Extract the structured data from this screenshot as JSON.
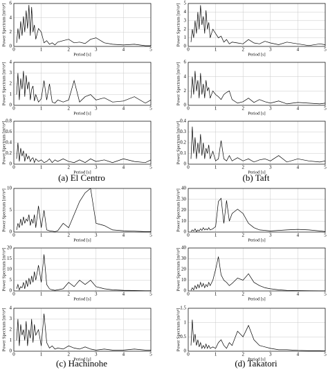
{
  "chart_data": [
    {
      "type": "line",
      "xlabel": "Period [s]",
      "ylabel": "Power Spectrum [m²/s⁴]",
      "xlim": [
        0,
        5
      ],
      "xticks": [
        0,
        1,
        2,
        3,
        4,
        5
      ],
      "ylim": [
        0,
        6
      ],
      "yticks": [
        0,
        2,
        4,
        6
      ],
      "grid": true,
      "x": [
        0.1,
        0.15,
        0.2,
        0.25,
        0.3,
        0.35,
        0.4,
        0.45,
        0.5,
        0.55,
        0.6,
        0.65,
        0.7,
        0.75,
        0.8,
        0.9,
        1.0,
        1.1,
        1.2,
        1.3,
        1.4,
        1.5,
        1.6,
        1.8,
        2.0,
        2.2,
        2.4,
        2.6,
        2.8,
        3.0,
        3.3,
        3.6,
        4.0,
        4.4,
        4.8,
        5.0
      ],
      "series": [
        {
          "color": "#000000",
          "values": [
            0.5,
            2.5,
            1,
            3.5,
            1.5,
            4.2,
            2,
            5,
            2.5,
            5.8,
            1.5,
            5.5,
            2,
            3,
            1,
            2.5,
            2,
            0.5,
            0.8,
            0.3,
            0.5,
            0.2,
            0.6,
            0.8,
            1.0,
            0.5,
            0.6,
            0.4,
            1.0,
            1.2,
            0.5,
            0.3,
            0.2,
            0.3,
            0.1,
            0.1
          ]
        }
      ]
    },
    {
      "type": "line",
      "xlabel": "Period [s]",
      "ylabel": "Power Spectrum [m²/s⁴]",
      "xlim": [
        0,
        5
      ],
      "xticks": [
        0,
        1,
        2,
        3,
        4,
        5
      ],
      "ylim": [
        0,
        4
      ],
      "yticks": [
        0,
        1,
        2,
        3,
        4
      ],
      "grid": true,
      "x": [
        0.1,
        0.15,
        0.2,
        0.25,
        0.3,
        0.35,
        0.4,
        0.45,
        0.5,
        0.55,
        0.6,
        0.65,
        0.7,
        0.75,
        0.8,
        0.9,
        1.0,
        1.1,
        1.2,
        1.3,
        1.4,
        1.5,
        1.6,
        1.8,
        2.0,
        2.2,
        2.4,
        2.6,
        2.8,
        3.0,
        3.3,
        3.6,
        4.0,
        4.4,
        4.8,
        5.0
      ],
      "series": [
        {
          "color": "#000000",
          "values": [
            1,
            3,
            0.5,
            2.5,
            1.5,
            3.2,
            0.8,
            2.8,
            1.5,
            2.2,
            0.5,
            1.5,
            1.8,
            0.4,
            1,
            0.3,
            0.6,
            2.3,
            0.5,
            2.0,
            0.3,
            0.2,
            0.5,
            0.3,
            0.5,
            2.3,
            0.3,
            0.8,
            1.0,
            0.5,
            0.7,
            0.3,
            0.4,
            0.8,
            0.2,
            0.5
          ]
        }
      ]
    },
    {
      "type": "line",
      "xlabel": "Period [s]",
      "ylabel": "Power Spectrum [m²/s⁴]",
      "xlim": [
        0,
        5
      ],
      "xticks": [
        0,
        1,
        2,
        3,
        4,
        5
      ],
      "ylim": [
        0,
        0.8
      ],
      "yticks": [
        0,
        0.2,
        0.4,
        0.6,
        0.8
      ],
      "grid": true,
      "x": [
        0.1,
        0.15,
        0.2,
        0.25,
        0.3,
        0.35,
        0.4,
        0.45,
        0.5,
        0.55,
        0.6,
        0.65,
        0.7,
        0.75,
        0.8,
        0.9,
        1.0,
        1.1,
        1.2,
        1.3,
        1.4,
        1.5,
        1.6,
        1.8,
        2.0,
        2.2,
        2.4,
        2.6,
        2.8,
        3.0,
        3.3,
        3.6,
        4.0,
        4.4,
        4.8,
        5.0
      ],
      "series": [
        {
          "color": "#000000",
          "values": [
            0.1,
            0.4,
            0.05,
            0.3,
            0.15,
            0.25,
            0.05,
            0.2,
            0.1,
            0.15,
            0.05,
            0.1,
            0.12,
            0.03,
            0.1,
            0.05,
            0.08,
            0.03,
            0.05,
            0.1,
            0.03,
            0.08,
            0.05,
            0.1,
            0.05,
            0.03,
            0.08,
            0.03,
            0.1,
            0.05,
            0.08,
            0.03,
            0.1,
            0.05,
            0.03,
            0.08
          ]
        }
      ]
    },
    {
      "type": "line",
      "xlabel": "Period [s]",
      "ylabel": "Power Spectrum [m²/s⁴]",
      "xlim": [
        0,
        5
      ],
      "xticks": [
        0,
        1,
        2,
        3,
        4,
        5
      ],
      "ylim": [
        0,
        5
      ],
      "yticks": [
        0,
        1,
        2,
        3,
        4,
        5
      ],
      "grid": true,
      "x": [
        0.1,
        0.15,
        0.2,
        0.25,
        0.3,
        0.35,
        0.4,
        0.45,
        0.5,
        0.55,
        0.6,
        0.65,
        0.7,
        0.75,
        0.8,
        0.9,
        1.0,
        1.1,
        1.2,
        1.3,
        1.4,
        1.5,
        1.6,
        1.8,
        2.0,
        2.2,
        2.4,
        2.6,
        2.8,
        3.0,
        3.3,
        3.6,
        4.0,
        4.4,
        4.8,
        5.0
      ],
      "series": [
        {
          "color": "#000000",
          "values": [
            0.5,
            2,
            1,
            3,
            1.5,
            4,
            2,
            4.8,
            2.5,
            3.5,
            1.5,
            4.2,
            2,
            2.8,
            1,
            2,
            1.5,
            1,
            1.2,
            0.5,
            0.8,
            0.3,
            0.5,
            0.4,
            0.3,
            0.8,
            0.4,
            0.3,
            0.6,
            0.4,
            0.2,
            0.5,
            0.3,
            0.1,
            0.3,
            0.2
          ]
        }
      ]
    },
    {
      "type": "line",
      "xlabel": "Period [s]",
      "ylabel": "Power Spectrum [m²/s⁴]",
      "xlim": [
        0,
        5
      ],
      "xticks": [
        0,
        1,
        2,
        3,
        4,
        5
      ],
      "ylim": [
        0,
        6
      ],
      "yticks": [
        0,
        2,
        4,
        6
      ],
      "grid": true,
      "x": [
        0.1,
        0.15,
        0.2,
        0.25,
        0.3,
        0.35,
        0.4,
        0.45,
        0.5,
        0.55,
        0.6,
        0.65,
        0.7,
        0.75,
        0.8,
        0.9,
        1.0,
        1.1,
        1.2,
        1.3,
        1.4,
        1.5,
        1.6,
        1.8,
        2.0,
        2.2,
        2.4,
        2.6,
        2.8,
        3.0,
        3.3,
        3.6,
        4.0,
        4.4,
        4.8,
        5.0
      ],
      "series": [
        {
          "color": "#000000",
          "values": [
            1,
            4,
            1.5,
            4.8,
            2,
            3.5,
            1,
            4.5,
            1.5,
            3,
            1,
            3.5,
            2,
            2.5,
            1,
            2,
            1.5,
            1.2,
            0.8,
            1.5,
            1.8,
            2.0,
            0.8,
            0.3,
            0.5,
            1.0,
            0.4,
            0.8,
            0.5,
            0.3,
            0.6,
            0.2,
            0.4,
            0.3,
            0.2,
            0.3
          ]
        }
      ]
    },
    {
      "type": "line",
      "xlabel": "Period [s]",
      "ylabel": "Power Spectrum [m²/s⁴]",
      "xlim": [
        0,
        5
      ],
      "xticks": [
        0,
        1,
        2,
        3,
        4,
        5
      ],
      "ylim": [
        0,
        0.4
      ],
      "yticks": [
        0,
        0.1,
        0.2,
        0.3,
        0.4
      ],
      "grid": true,
      "x": [
        0.1,
        0.15,
        0.2,
        0.25,
        0.3,
        0.35,
        0.4,
        0.45,
        0.5,
        0.55,
        0.6,
        0.65,
        0.7,
        0.75,
        0.8,
        0.9,
        1.0,
        1.1,
        1.2,
        1.3,
        1.4,
        1.5,
        1.6,
        1.8,
        2.0,
        2.2,
        2.4,
        2.6,
        2.8,
        3.0,
        3.3,
        3.6,
        4.0,
        4.4,
        4.8,
        5.0
      ],
      "series": [
        {
          "color": "#000000",
          "values": [
            0.05,
            0.35,
            0.1,
            0.25,
            0.05,
            0.2,
            0.1,
            0.28,
            0.08,
            0.2,
            0.05,
            0.15,
            0.1,
            0.18,
            0.05,
            0.12,
            0.03,
            0.05,
            0.22,
            0.05,
            0.03,
            0.08,
            0.03,
            0.06,
            0.03,
            0.05,
            0.02,
            0.04,
            0.05,
            0.03,
            0.08,
            0.02,
            0.05,
            0.03,
            0.02,
            0.03
          ]
        }
      ]
    },
    {
      "type": "line",
      "xlabel": "Period [s]",
      "ylabel": "Power Spectrum [m²/s⁴]",
      "xlim": [
        0,
        5
      ],
      "xticks": [
        0,
        1,
        2,
        3,
        4,
        5
      ],
      "ylim": [
        0,
        10
      ],
      "yticks": [
        0,
        5,
        10
      ],
      "grid": true,
      "x": [
        0.1,
        0.15,
        0.2,
        0.25,
        0.3,
        0.35,
        0.4,
        0.45,
        0.5,
        0.55,
        0.6,
        0.65,
        0.7,
        0.75,
        0.8,
        0.9,
        1.0,
        1.1,
        1.2,
        1.3,
        1.4,
        1.5,
        1.6,
        1.8,
        2.0,
        2.2,
        2.4,
        2.6,
        2.8,
        3.0,
        3.3,
        3.6,
        4.0,
        4.4,
        4.8,
        5.0
      ],
      "series": [
        {
          "color": "#000000",
          "values": [
            0.5,
            2,
            1,
            3,
            1.5,
            3.5,
            2,
            3,
            2.5,
            4,
            1.5,
            3,
            2,
            4,
            1,
            6,
            1,
            5,
            0.5,
            0.3,
            0.2,
            0.1,
            0.3,
            2,
            1,
            4,
            7,
            9,
            10,
            2,
            1.5,
            0.5,
            0.3,
            0.2,
            0.1,
            0.1
          ]
        }
      ]
    },
    {
      "type": "line",
      "xlabel": "Period [s]",
      "ylabel": "Power Spectrum [m²/s⁴]",
      "xlim": [
        0,
        5
      ],
      "xticks": [
        0,
        1,
        2,
        3,
        4,
        5
      ],
      "ylim": [
        0,
        20
      ],
      "yticks": [
        0,
        5,
        10,
        15,
        20
      ],
      "grid": true,
      "x": [
        0.1,
        0.15,
        0.2,
        0.25,
        0.3,
        0.35,
        0.4,
        0.45,
        0.5,
        0.55,
        0.6,
        0.65,
        0.7,
        0.75,
        0.8,
        0.9,
        1.0,
        1.1,
        1.2,
        1.3,
        1.4,
        1.5,
        1.6,
        1.8,
        2.0,
        2.2,
        2.4,
        2.6,
        2.8,
        3.0,
        3.3,
        3.6,
        4.0,
        4.4,
        4.8,
        5.0
      ],
      "series": [
        {
          "color": "#000000",
          "values": [
            1,
            3,
            0.5,
            2,
            1.5,
            4,
            1,
            5,
            2,
            6,
            3,
            7,
            4,
            9,
            5,
            12,
            4,
            17,
            3,
            1,
            0.5,
            0.3,
            0.5,
            1,
            4,
            2,
            5,
            3,
            5,
            2,
            1,
            0.5,
            0.3,
            0.2,
            0.1,
            0.1
          ]
        }
      ]
    },
    {
      "type": "line",
      "xlabel": "Period [s]",
      "ylabel": "Power Spectrum [m²/s⁴]",
      "xlim": [
        0,
        5
      ],
      "xticks": [
        0,
        1,
        2,
        3,
        4,
        5
      ],
      "ylim": [
        0,
        4
      ],
      "yticks": [
        0,
        1,
        2,
        3,
        4
      ],
      "grid": true,
      "x": [
        0.1,
        0.15,
        0.2,
        0.25,
        0.3,
        0.35,
        0.4,
        0.45,
        0.5,
        0.55,
        0.6,
        0.65,
        0.7,
        0.75,
        0.8,
        0.9,
        1.0,
        1.1,
        1.2,
        1.3,
        1.4,
        1.5,
        1.6,
        1.8,
        2.0,
        2.2,
        2.4,
        2.6,
        2.8,
        3.0,
        3.3,
        3.6,
        4.0,
        4.4,
        4.8,
        5.0
      ],
      "series": [
        {
          "color": "#000000",
          "values": [
            1,
            3,
            0.5,
            2.5,
            1.5,
            2,
            1,
            2.8,
            0.5,
            2,
            1.2,
            3,
            0.8,
            2.5,
            1.5,
            2,
            0.5,
            3.5,
            0.8,
            0.3,
            0.5,
            0.2,
            0.3,
            0.2,
            0.5,
            0.3,
            0.2,
            0.4,
            0.2,
            0.1,
            0.2,
            0.1,
            0.1,
            0.2,
            0.1,
            0.1
          ]
        }
      ]
    },
    {
      "type": "line",
      "xlabel": "Period [s]",
      "ylabel": "Power Spectrum [m²/s⁴]",
      "xlim": [
        0,
        5
      ],
      "xticks": [
        0,
        1,
        2,
        3,
        4,
        5
      ],
      "ylim": [
        0,
        40
      ],
      "yticks": [
        0,
        10,
        20,
        30,
        40
      ],
      "grid": true,
      "x": [
        0.1,
        0.15,
        0.2,
        0.25,
        0.3,
        0.35,
        0.4,
        0.45,
        0.5,
        0.55,
        0.6,
        0.65,
        0.7,
        0.75,
        0.8,
        0.9,
        1.0,
        1.1,
        1.2,
        1.3,
        1.4,
        1.5,
        1.6,
        1.8,
        2.0,
        2.2,
        2.4,
        2.6,
        2.8,
        3.0,
        3.3,
        3.6,
        4.0,
        4.4,
        4.8,
        5.0
      ],
      "series": [
        {
          "color": "#000000",
          "values": [
            0.5,
            2,
            1,
            3,
            0.5,
            2,
            1,
            3,
            1.5,
            4,
            2,
            3,
            2,
            4,
            2,
            3,
            5,
            28,
            31,
            8,
            29,
            10,
            17,
            21,
            17,
            8,
            4,
            2,
            1.5,
            1,
            1.5,
            2,
            2.5,
            2,
            1,
            0.5
          ]
        }
      ]
    },
    {
      "type": "line",
      "xlabel": "Period [s]",
      "ylabel": "Power Spectrum [m²/s⁴]",
      "xlim": [
        0,
        5
      ],
      "xticks": [
        0,
        1,
        2,
        3,
        4,
        5
      ],
      "ylim": [
        0,
        40
      ],
      "yticks": [
        0,
        10,
        20,
        30,
        40
      ],
      "grid": true,
      "x": [
        0.1,
        0.15,
        0.2,
        0.25,
        0.3,
        0.35,
        0.4,
        0.45,
        0.5,
        0.55,
        0.6,
        0.65,
        0.7,
        0.75,
        0.8,
        0.9,
        1.0,
        1.1,
        1.2,
        1.3,
        1.4,
        1.5,
        1.6,
        1.8,
        2.0,
        2.2,
        2.4,
        2.6,
        2.8,
        3.0,
        3.3,
        3.6,
        4.0,
        4.4,
        4.8,
        5.0
      ],
      "series": [
        {
          "color": "#000000",
          "values": [
            0.5,
            3,
            1,
            5,
            2,
            6,
            3,
            8,
            4,
            7,
            3,
            6,
            4,
            8,
            5,
            10,
            20,
            32,
            15,
            10,
            8,
            5,
            7,
            12,
            10,
            16,
            8,
            5,
            3,
            2,
            1,
            0.5,
            0.3,
            0.2,
            0.1,
            0.1
          ]
        }
      ]
    },
    {
      "type": "line",
      "xlabel": "Period [s]",
      "ylabel": "Power Spectrum [m²/s⁴]",
      "xlim": [
        0,
        5
      ],
      "xticks": [
        0,
        1,
        2,
        3,
        4,
        5
      ],
      "ylim": [
        0,
        1.5
      ],
      "yticks": [
        0,
        0.5,
        1,
        1.5
      ],
      "grid": true,
      "x": [
        0.1,
        0.15,
        0.2,
        0.25,
        0.3,
        0.35,
        0.4,
        0.45,
        0.5,
        0.55,
        0.6,
        0.65,
        0.7,
        0.75,
        0.8,
        0.9,
        1.0,
        1.1,
        1.2,
        1.3,
        1.4,
        1.5,
        1.6,
        1.8,
        2.0,
        2.2,
        2.4,
        2.6,
        2.8,
        3.0,
        3.3,
        3.6,
        4.0,
        4.4,
        4.8,
        5.0
      ],
      "series": [
        {
          "color": "#000000",
          "values": [
            0.2,
            1.1,
            0.3,
            0.6,
            0.2,
            0.4,
            0.15,
            0.3,
            0.1,
            0.2,
            0.1,
            0.25,
            0.1,
            0.2,
            0.1,
            0.15,
            0.1,
            0.3,
            0.4,
            0.2,
            0.1,
            0.3,
            0.2,
            0.7,
            0.5,
            0.9,
            0.4,
            0.2,
            0.15,
            0.1,
            0.05,
            0.05,
            0.03,
            0.02,
            0.02,
            0.01
          ]
        }
      ]
    }
  ],
  "captions": [
    "(a) El Centro",
    "(b) Taft",
    "(c) Hachinohe",
    "(d) Takatori"
  ]
}
